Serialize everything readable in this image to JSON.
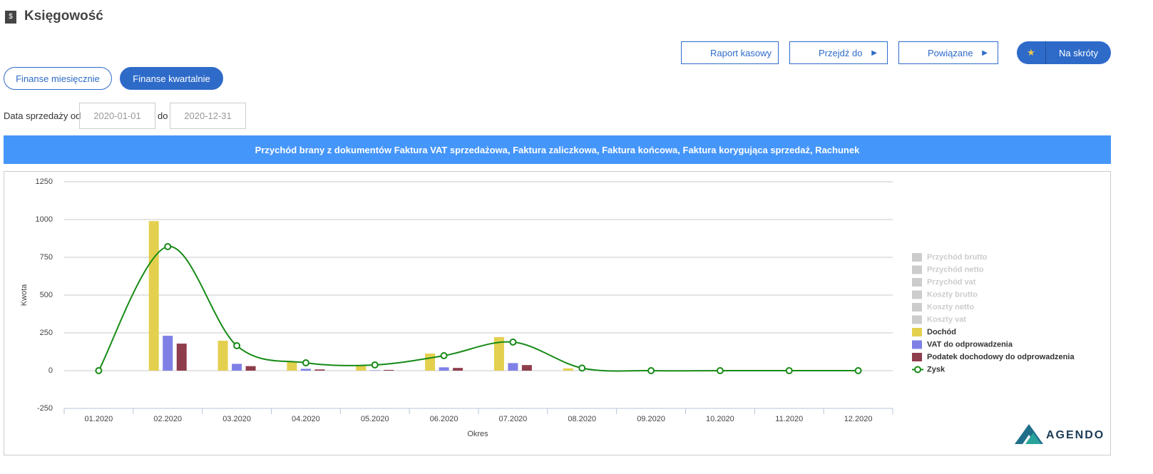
{
  "header": {
    "title": "Księgowość"
  },
  "actions": [
    "Raport kasowy",
    "Przejdź do",
    "Powiązane",
    "Na skróty"
  ],
  "tabs": [
    "Finanse miesięcznie",
    "Finanse kwartalnie"
  ],
  "filter": {
    "label_from": "Data sprzedaży od",
    "from": "2020-01-01",
    "label_to": "do",
    "to": "2020-12-31"
  },
  "banner": "Przychód brany z dokumentów Faktura VAT sprzedażowa, Faktura zaliczkowa, Faktura końcowa, Faktura korygująca sprzedaż, Rachunek",
  "chart_data": {
    "type": "bar",
    "x_label": "Okres",
    "y_label": "Kwota",
    "categories": [
      "01.2020",
      "02.2020",
      "03.2020",
      "04.2020",
      "05.2020",
      "06.2020",
      "07.2020",
      "08.2020",
      "09.2020",
      "10.2020",
      "11.2020",
      "12.2020"
    ],
    "legend_hidden": [
      "Przychód brutto",
      "Przychód netto",
      "Przychód vat",
      "Koszty brutto",
      "Koszty netto",
      "Koszty vat"
    ],
    "series": [
      {
        "name": "Dochód",
        "type": "bar",
        "color": "#e3d04f",
        "values": [
          0,
          990,
          198,
          57,
          38,
          113,
          222,
          15,
          0,
          0,
          0,
          0
        ]
      },
      {
        "name": "VAT do odprowadzenia",
        "type": "bar",
        "color": "#7f80e6",
        "values": [
          0,
          231,
          45,
          12,
          3,
          22,
          50,
          0,
          0,
          0,
          0,
          0
        ]
      },
      {
        "name": "Podatek dochodowy do odprowadzenia",
        "type": "bar",
        "color": "#8e3d4d",
        "values": [
          0,
          179,
          30,
          8,
          5,
          18,
          37,
          0,
          0,
          0,
          0,
          0
        ]
      },
      {
        "name": "Zysk",
        "type": "line",
        "color": "#168a16",
        "values": [
          0,
          821,
          165,
          52,
          38,
          99,
          189,
          17,
          0,
          0,
          0,
          0
        ]
      }
    ],
    "ylim": [
      -250,
      1250
    ],
    "yticks": [
      -250,
      0,
      250,
      500,
      750,
      1000,
      1250
    ],
    "grid": true
  },
  "logo": "AGENDO"
}
